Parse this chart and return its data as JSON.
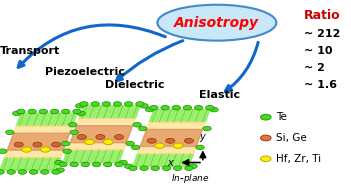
{
  "title": "Anisotropy",
  "title_color": "#FF0000",
  "title_ellipse_color": "#C8E8F8",
  "title_ellipse_edge": "#4488CC",
  "ratio_title": "Ratio",
  "ratio_color": "#CC0000",
  "ratio_values": [
    "~ 212",
    "~ 10",
    "~ 2",
    "~ 1.6"
  ],
  "legend_items": [
    {
      "label": "Te",
      "color": "#44DD22",
      "edge": "#229900"
    },
    {
      "label": "Si, Ge",
      "color": "#DD7744",
      "edge": "#AA3311"
    },
    {
      "label": "Hf, Zr, Ti",
      "color": "#FFEE00",
      "edge": "#BBAA00"
    }
  ],
  "bg_color": "#FFFFFF",
  "arrow_color": "#1166CC",
  "green_te": "#44DD22",
  "green_te_e": "#228800",
  "orange_si": "#CC6633",
  "orange_si_e": "#993311",
  "yellow_hf": "#FFEE00",
  "yellow_hf_e": "#BBAA00"
}
